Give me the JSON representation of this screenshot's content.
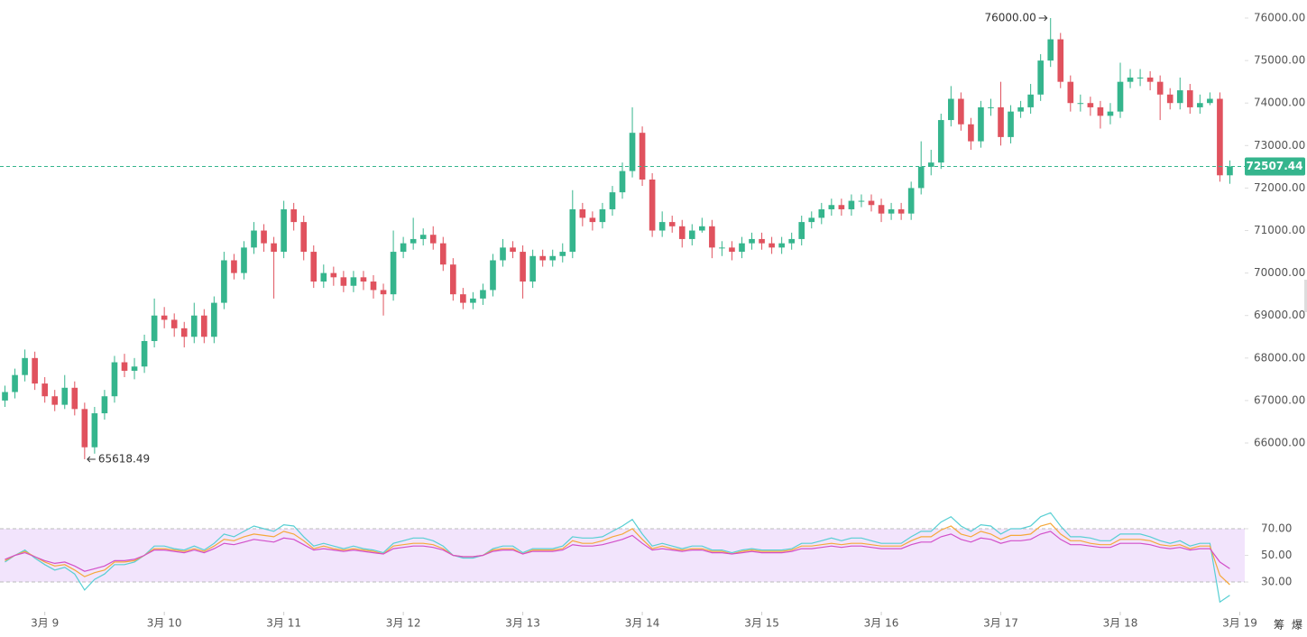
{
  "chart_data": [
    {
      "type": "candlestick",
      "up_color": "#35b58d",
      "down_color": "#e0525e",
      "xlim": [
        -0.5,
        124.5
      ],
      "ylim": [
        64960,
        76425
      ],
      "yticks": [
        {
          "value": 66000,
          "label": "66000.00"
        },
        {
          "value": 67000,
          "label": "67000.00"
        },
        {
          "value": 68000,
          "label": "68000.00"
        },
        {
          "value": 69000,
          "label": "69000.00"
        },
        {
          "value": 70000,
          "label": "70000.00"
        },
        {
          "value": 71000,
          "label": "71000.00"
        },
        {
          "value": 72000,
          "label": "72000.00"
        },
        {
          "value": 73000,
          "label": "73000.00"
        },
        {
          "value": 74000,
          "label": "74000.00"
        },
        {
          "value": 75000,
          "label": "75000.00"
        },
        {
          "value": 76000,
          "label": "76000.00"
        }
      ],
      "last_price": 72507.44,
      "annotations": [
        {
          "value": 76000,
          "label": "76000.00",
          "side": "high"
        },
        {
          "value": 65618.49,
          "label": "65618.49",
          "side": "low"
        }
      ],
      "open": [
        67000,
        67200,
        67600,
        68000,
        67400,
        67100,
        66900,
        67300,
        66800,
        65900,
        66700,
        67100,
        67900,
        67700,
        67800,
        68400,
        69000,
        68900,
        68700,
        68500,
        69000,
        68500,
        69300,
        70300,
        70000,
        70600,
        71000,
        70700,
        70500,
        71500,
        71200,
        70500,
        69800,
        70000,
        69900,
        69700,
        69900,
        69800,
        69600,
        69500,
        70500,
        70700,
        70800,
        70900,
        70700,
        70200,
        69500,
        69300,
        69400,
        69600,
        70300,
        70600,
        70500,
        69800,
        70400,
        70300,
        70400,
        70500,
        71500,
        71300,
        71200,
        71500,
        71900,
        72400,
        73300,
        72200,
        71000,
        71200,
        71100,
        70800,
        71000,
        71100,
        70600,
        70600,
        70500,
        70700,
        70800,
        70700,
        70600,
        70700,
        70800,
        71200,
        71300,
        71500,
        71600,
        71500,
        71700,
        71700,
        71600,
        71400,
        71500,
        71400,
        72000,
        72500,
        72600,
        73600,
        74100,
        73500,
        73100,
        73900,
        73900,
        73200,
        73800,
        73900,
        74200,
        75000,
        75500,
        74500,
        74000,
        74000,
        73900,
        73700,
        73800,
        74500,
        74600,
        74600,
        74500,
        74200,
        74000,
        74300,
        73900,
        74000,
        74100,
        72300
      ],
      "high": [
        67350,
        67750,
        68200,
        68150,
        67550,
        67250,
        67600,
        67450,
        66950,
        66850,
        67250,
        68050,
        68100,
        68000,
        68550,
        69400,
        69200,
        69050,
        68850,
        69300,
        69150,
        69450,
        70500,
        70450,
        70750,
        71200,
        71150,
        70850,
        71700,
        71650,
        71350,
        70650,
        70200,
        70150,
        70050,
        70050,
        70050,
        69950,
        69750,
        71000,
        70850,
        71300,
        71050,
        71100,
        70850,
        70350,
        69650,
        69550,
        69750,
        70450,
        70800,
        70750,
        70650,
        70550,
        70550,
        70550,
        70700,
        71950,
        71650,
        71450,
        71650,
        72050,
        72600,
        73900,
        73450,
        72350,
        71450,
        71350,
        71250,
        71150,
        71300,
        71250,
        70750,
        70750,
        70850,
        70950,
        70950,
        70850,
        70850,
        70950,
        71350,
        71450,
        71650,
        71750,
        71750,
        71850,
        71850,
        71850,
        71750,
        71650,
        71650,
        72150,
        73100,
        72900,
        73750,
        74400,
        74250,
        73650,
        74050,
        74100,
        74500,
        73950,
        74050,
        74450,
        75150,
        76000,
        75650,
        74650,
        74200,
        74150,
        74050,
        74000,
        74950,
        74800,
        74800,
        74750,
        74650,
        74350,
        74600,
        74450,
        74200,
        74250,
        74250,
        72650
      ],
      "low": [
        66850,
        67050,
        67450,
        67250,
        66950,
        66750,
        66800,
        66650,
        65618.49,
        65750,
        66550,
        66950,
        67550,
        67500,
        67650,
        68250,
        68700,
        68500,
        68250,
        68350,
        68350,
        68350,
        69150,
        69850,
        69850,
        70450,
        70500,
        69400,
        70350,
        71000,
        70300,
        69650,
        69650,
        69700,
        69550,
        69550,
        69600,
        69400,
        69000,
        69350,
        70350,
        70550,
        70650,
        70550,
        70050,
        69350,
        69150,
        69150,
        69250,
        69450,
        70150,
        70350,
        69400,
        69650,
        70150,
        70150,
        70250,
        70350,
        71100,
        71000,
        71050,
        71350,
        71750,
        72250,
        72050,
        70850,
        70850,
        70950,
        70600,
        70650,
        70950,
        70350,
        70400,
        70300,
        70350,
        70550,
        70550,
        70450,
        70450,
        70550,
        70650,
        71050,
        71150,
        71350,
        71350,
        71350,
        71550,
        71450,
        71200,
        71250,
        71250,
        71250,
        71850,
        72300,
        72450,
        73450,
        73350,
        72900,
        72950,
        73700,
        73000,
        73050,
        73650,
        73750,
        74050,
        74850,
        74350,
        73800,
        73800,
        73700,
        73400,
        73500,
        73650,
        74350,
        74400,
        74300,
        73600,
        73850,
        73850,
        73750,
        73750,
        73950,
        72150,
        72100
      ],
      "close": [
        67200,
        67600,
        68000,
        67400,
        67100,
        66900,
        67300,
        66800,
        65900,
        66700,
        67100,
        67900,
        67700,
        67800,
        68400,
        69000,
        68900,
        68700,
        68500,
        69000,
        68500,
        69300,
        70300,
        70000,
        70600,
        71000,
        70700,
        70500,
        71500,
        71200,
        70500,
        69800,
        70000,
        69900,
        69700,
        69900,
        69800,
        69600,
        69500,
        70500,
        70700,
        70800,
        70900,
        70700,
        70200,
        69500,
        69300,
        69400,
        69600,
        70300,
        70600,
        70500,
        69800,
        70400,
        70300,
        70400,
        70500,
        71500,
        71300,
        71200,
        71500,
        71900,
        72400,
        73300,
        72200,
        71000,
        71200,
        71100,
        70800,
        71000,
        71100,
        70600,
        70600,
        70500,
        70700,
        70800,
        70700,
        70600,
        70700,
        70800,
        71200,
        71300,
        71500,
        71600,
        71500,
        71700,
        71700,
        71600,
        71400,
        71500,
        71400,
        72000,
        72500,
        72600,
        73600,
        74100,
        73500,
        73100,
        73900,
        73900,
        73200,
        73800,
        73900,
        74200,
        75000,
        75500,
        74500,
        74000,
        74000,
        73900,
        73700,
        73800,
        74500,
        74600,
        74600,
        74500,
        74200,
        74000,
        74300,
        73900,
        74000,
        74100,
        72300,
        72507.44
      ]
    },
    {
      "type": "line",
      "xlim": [
        -0.5,
        124.5
      ],
      "ylim": [
        9.7,
        91
      ],
      "band": [
        30,
        70
      ],
      "band_color": "#f2e4fc",
      "yticks": [
        {
          "value": 30,
          "label": "30.00"
        },
        {
          "value": 50,
          "label": "50.00"
        },
        {
          "value": 70,
          "label": "70.00"
        }
      ],
      "xticks": [
        {
          "value": 4,
          "label": "3月 9"
        },
        {
          "value": 16,
          "label": "3月 10"
        },
        {
          "value": 28,
          "label": "3月 11"
        },
        {
          "value": 40,
          "label": "3月 12"
        },
        {
          "value": 52,
          "label": "3月 13"
        },
        {
          "value": 64,
          "label": "3月 14"
        },
        {
          "value": 76,
          "label": "3月 15"
        },
        {
          "value": 88,
          "label": "3月 16"
        },
        {
          "value": 100,
          "label": "3月 17"
        },
        {
          "value": 112,
          "label": "3月 18"
        },
        {
          "value": 124,
          "label": "3月 19"
        }
      ],
      "series": [
        {
          "color": "#57cfd3",
          "values": [
            45,
            50,
            54,
            48,
            43,
            39,
            41,
            36,
            24,
            32,
            36,
            43,
            43,
            45,
            50,
            57,
            57,
            55,
            54,
            57,
            54,
            59,
            66,
            64,
            68,
            72,
            70,
            68,
            73,
            72,
            64,
            57,
            59,
            57,
            55,
            57,
            55,
            54,
            52,
            59,
            61,
            63,
            63,
            61,
            57,
            50,
            48,
            48,
            50,
            55,
            57,
            57,
            52,
            55,
            55,
            55,
            57,
            64,
            63,
            63,
            64,
            68,
            72,
            77,
            66,
            57,
            59,
            57,
            55,
            57,
            57,
            54,
            54,
            52,
            54,
            55,
            54,
            54,
            54,
            55,
            59,
            59,
            61,
            63,
            61,
            63,
            63,
            61,
            59,
            59,
            59,
            64,
            68,
            68,
            75,
            79,
            72,
            68,
            73,
            72,
            66,
            70,
            70,
            72,
            79,
            82,
            72,
            64,
            64,
            63,
            61,
            61,
            66,
            66,
            66,
            64,
            61,
            59,
            61,
            57,
            59,
            59,
            15,
            20
          ]
        },
        {
          "color": "#f5a83a",
          "values": [
            46,
            50,
            53,
            49,
            45,
            42,
            43,
            39,
            34,
            37,
            39,
            45,
            45,
            46,
            50,
            55,
            55,
            54,
            53,
            55,
            53,
            57,
            62,
            61,
            64,
            66,
            65,
            64,
            68,
            66,
            61,
            55,
            57,
            55,
            54,
            55,
            54,
            53,
            51,
            57,
            58,
            59,
            59,
            58,
            55,
            50,
            49,
            49,
            50,
            54,
            55,
            55,
            51,
            54,
            54,
            54,
            55,
            61,
            59,
            59,
            61,
            64,
            66,
            70,
            62,
            55,
            57,
            55,
            54,
            55,
            55,
            53,
            53,
            51,
            53,
            54,
            53,
            53,
            53,
            54,
            57,
            57,
            58,
            59,
            58,
            59,
            59,
            58,
            57,
            57,
            57,
            61,
            64,
            64,
            69,
            72,
            66,
            64,
            68,
            66,
            62,
            65,
            65,
            66,
            72,
            74,
            66,
            61,
            61,
            59,
            58,
            58,
            62,
            62,
            62,
            61,
            58,
            57,
            58,
            55,
            57,
            57,
            35,
            28
          ]
        },
        {
          "color": "#d24fc9",
          "values": [
            47,
            50,
            52,
            49,
            46,
            44,
            45,
            42,
            38,
            40,
            42,
            46,
            46,
            47,
            50,
            54,
            54,
            53,
            52,
            54,
            52,
            55,
            59,
            58,
            60,
            62,
            61,
            60,
            63,
            62,
            58,
            54,
            55,
            54,
            53,
            54,
            53,
            52,
            51,
            55,
            56,
            57,
            57,
            56,
            54,
            50,
            49,
            49,
            50,
            53,
            54,
            54,
            51,
            53,
            53,
            53,
            54,
            58,
            57,
            57,
            58,
            60,
            62,
            65,
            59,
            54,
            55,
            54,
            53,
            54,
            54,
            52,
            52,
            51,
            52,
            53,
            52,
            52,
            52,
            53,
            55,
            55,
            56,
            57,
            56,
            57,
            57,
            56,
            55,
            55,
            55,
            58,
            60,
            60,
            64,
            66,
            62,
            60,
            63,
            62,
            59,
            61,
            61,
            62,
            66,
            68,
            62,
            58,
            58,
            57,
            56,
            56,
            59,
            59,
            59,
            58,
            56,
            55,
            56,
            54,
            55,
            55,
            45,
            40
          ]
        }
      ]
    }
  ],
  "toolbar": [
    "筹",
    "爆"
  ]
}
